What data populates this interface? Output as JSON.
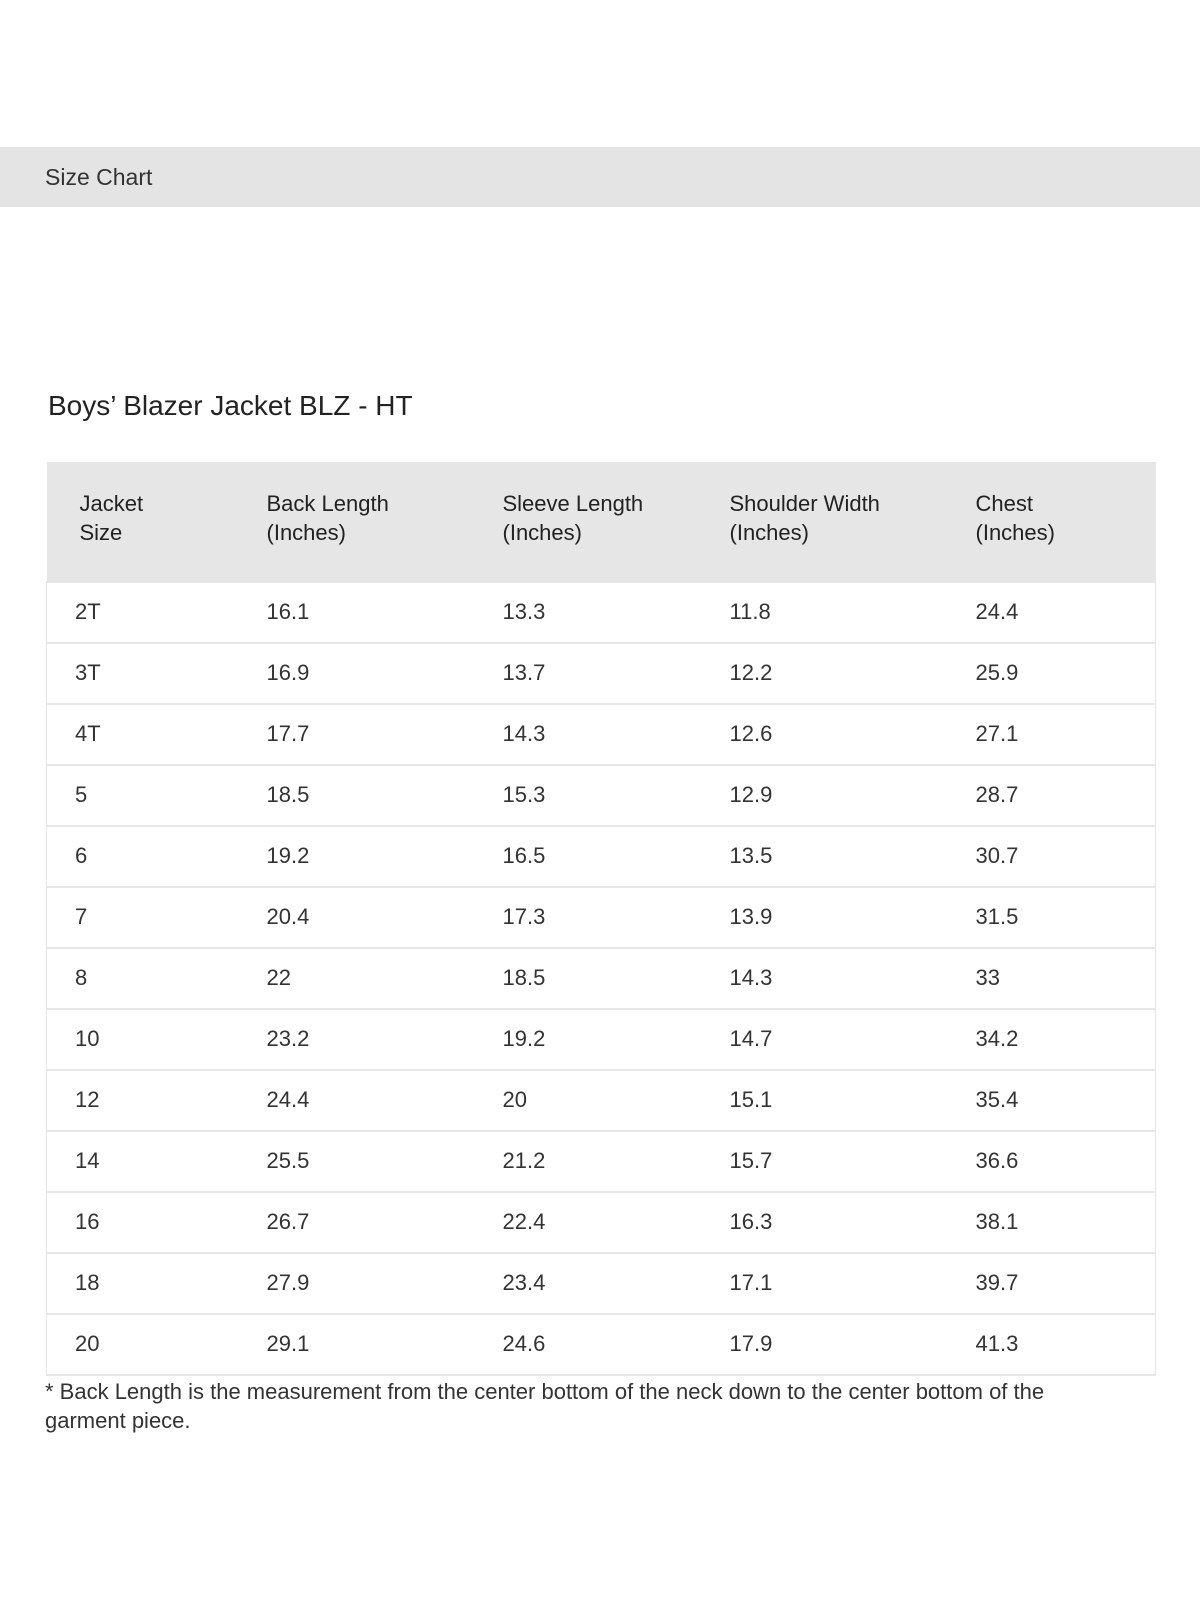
{
  "header": {
    "title": "Size Chart"
  },
  "chart_title": "Boys’ Blazer Jacket BLZ - HT",
  "table": {
    "columns": [
      [
        "Jacket",
        "Size"
      ],
      [
        "Back Length",
        "(Inches)"
      ],
      [
        "Sleeve Length",
        "(Inches)"
      ],
      [
        "Shoulder Width",
        "(Inches)"
      ],
      [
        "Chest",
        "(Inches)"
      ]
    ],
    "rows": [
      [
        "2T",
        "16.1",
        "13.3",
        "11.8",
        "24.4"
      ],
      [
        "3T",
        "16.9",
        "13.7",
        "12.2",
        "25.9"
      ],
      [
        "4T",
        "17.7",
        "14.3",
        "12.6",
        "27.1"
      ],
      [
        "5",
        "18.5",
        "15.3",
        "12.9",
        "28.7"
      ],
      [
        "6",
        "19.2",
        "16.5",
        "13.5",
        "30.7"
      ],
      [
        "7",
        "20.4",
        "17.3",
        "13.9",
        "31.5"
      ],
      [
        "8",
        "22",
        "18.5",
        "14.3",
        "33"
      ],
      [
        "10",
        "23.2",
        "19.2",
        "14.7",
        "34.2"
      ],
      [
        "12",
        "24.4",
        "20",
        "15.1",
        "35.4"
      ],
      [
        "14",
        "25.5",
        "21.2",
        "15.7",
        "36.6"
      ],
      [
        "16",
        "26.7",
        "22.4",
        "16.3",
        "38.1"
      ],
      [
        "18",
        "27.9",
        "23.4",
        "17.1",
        "39.7"
      ],
      [
        "20",
        "29.1",
        "24.6",
        "17.9",
        "41.3"
      ]
    ]
  },
  "footnote": "* Back Length is the measurement from the center bottom of the neck down to the center bottom of the garment piece.",
  "colors": {
    "band": "#e4e4e4",
    "table_header": "#e6e6e6",
    "text": "#222222"
  }
}
